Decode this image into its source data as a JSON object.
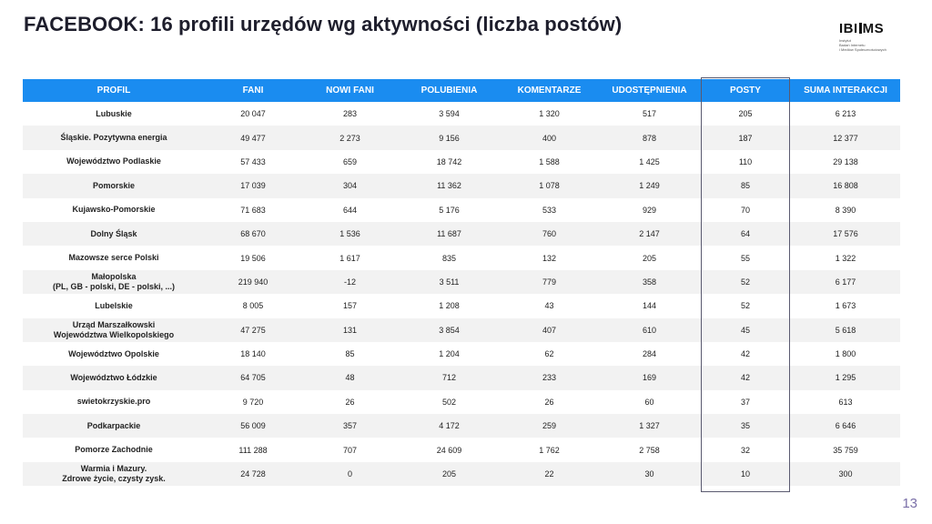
{
  "title": "FACEBOOK: 16 profili urzędów wg aktywności (liczba postów)",
  "logo": {
    "word_left": "IBI",
    "word_right": "MS",
    "subtitle_lines": [
      "Instytut",
      "Badań Internetu",
      "i Mediów Społecznościowych"
    ]
  },
  "table": {
    "headers": [
      "PROFIL",
      "FANI",
      "NOWI FANI",
      "POLUBIENIA",
      "KOMENTARZE",
      "UDOSTĘPNIENIA",
      "POSTY",
      "SUMA INTERAKCJI"
    ],
    "rows": [
      {
        "profile": [
          "Lubuskie"
        ],
        "fani": "20 047",
        "nowi_fani": "283",
        "polubienia": "3 594",
        "komentarze": "1 320",
        "udostepnienia": "517",
        "posty": "205",
        "suma": "6 213"
      },
      {
        "profile": [
          "Śląskie. Pozytywna energia"
        ],
        "fani": "49 477",
        "nowi_fani": "2 273",
        "polubienia": "9 156",
        "komentarze": "400",
        "udostepnienia": "878",
        "posty": "187",
        "suma": "12 377"
      },
      {
        "profile": [
          "Województwo Podlaskie"
        ],
        "fani": "57 433",
        "nowi_fani": "659",
        "polubienia": "18 742",
        "komentarze": "1 588",
        "udostepnienia": "1 425",
        "posty": "110",
        "suma": "29 138"
      },
      {
        "profile": [
          "Pomorskie"
        ],
        "fani": "17 039",
        "nowi_fani": "304",
        "polubienia": "11 362",
        "komentarze": "1 078",
        "udostepnienia": "1 249",
        "posty": "85",
        "suma": "16 808"
      },
      {
        "profile": [
          "Kujawsko-Pomorskie"
        ],
        "fani": "71 683",
        "nowi_fani": "644",
        "polubienia": "5 176",
        "komentarze": "533",
        "udostepnienia": "929",
        "posty": "70",
        "suma": "8 390"
      },
      {
        "profile": [
          "Dolny Śląsk"
        ],
        "fani": "68 670",
        "nowi_fani": "1 536",
        "polubienia": "11 687",
        "komentarze": "760",
        "udostepnienia": "2 147",
        "posty": "64",
        "suma": "17 576"
      },
      {
        "profile": [
          "Mazowsze serce Polski"
        ],
        "fani": "19 506",
        "nowi_fani": "1 617",
        "polubienia": "835",
        "komentarze": "132",
        "udostepnienia": "205",
        "posty": "55",
        "suma": "1 322"
      },
      {
        "profile": [
          "Małopolska",
          "(PL, GB - polski, DE - polski, ...)"
        ],
        "fani": "219 940",
        "nowi_fani": "-12",
        "polubienia": "3 511",
        "komentarze": "779",
        "udostepnienia": "358",
        "posty": "52",
        "suma": "6 177"
      },
      {
        "profile": [
          "Lubelskie"
        ],
        "fani": "8 005",
        "nowi_fani": "157",
        "polubienia": "1 208",
        "komentarze": "43",
        "udostepnienia": "144",
        "posty": "52",
        "suma": "1 673"
      },
      {
        "profile": [
          "Urząd Marszałkowski",
          "Województwa Wielkopolskiego"
        ],
        "fani": "47 275",
        "nowi_fani": "131",
        "polubienia": "3 854",
        "komentarze": "407",
        "udostepnienia": "610",
        "posty": "45",
        "suma": "5 618"
      },
      {
        "profile": [
          "Województwo Opolskie"
        ],
        "fani": "18 140",
        "nowi_fani": "85",
        "polubienia": "1 204",
        "komentarze": "62",
        "udostepnienia": "284",
        "posty": "42",
        "suma": "1 800"
      },
      {
        "profile": [
          "Województwo Łódzkie"
        ],
        "fani": "64 705",
        "nowi_fani": "48",
        "polubienia": "712",
        "komentarze": "233",
        "udostepnienia": "169",
        "posty": "42",
        "suma": "1 295"
      },
      {
        "profile": [
          "swietokrzyskie.pro"
        ],
        "fani": "9 720",
        "nowi_fani": "26",
        "polubienia": "502",
        "komentarze": "26",
        "udostepnienia": "60",
        "posty": "37",
        "suma": "613"
      },
      {
        "profile": [
          "Podkarpackie"
        ],
        "fani": "56 009",
        "nowi_fani": "357",
        "polubienia": "4 172",
        "komentarze": "259",
        "udostepnienia": "1 327",
        "posty": "35",
        "suma": "6 646"
      },
      {
        "profile": [
          "Pomorze Zachodnie"
        ],
        "fani": "111 288",
        "nowi_fani": "707",
        "polubienia": "24 609",
        "komentarze": "1 762",
        "udostepnienia": "2 758",
        "posty": "32",
        "suma": "35 759"
      },
      {
        "profile": [
          "Warmia i Mazury.",
          "Zdrowe życie, czysty zysk."
        ],
        "fani": "24 728",
        "nowi_fani": "0",
        "polubienia": "205",
        "komentarze": "22",
        "udostepnienia": "30",
        "posty": "10",
        "suma": "300"
      }
    ]
  },
  "page_number": "13",
  "colors": {
    "header_bg": "#1a8cf0",
    "title": "#1e1e2c",
    "page_number": "#7a6fa8",
    "row_alt": "#f2f2f2"
  }
}
